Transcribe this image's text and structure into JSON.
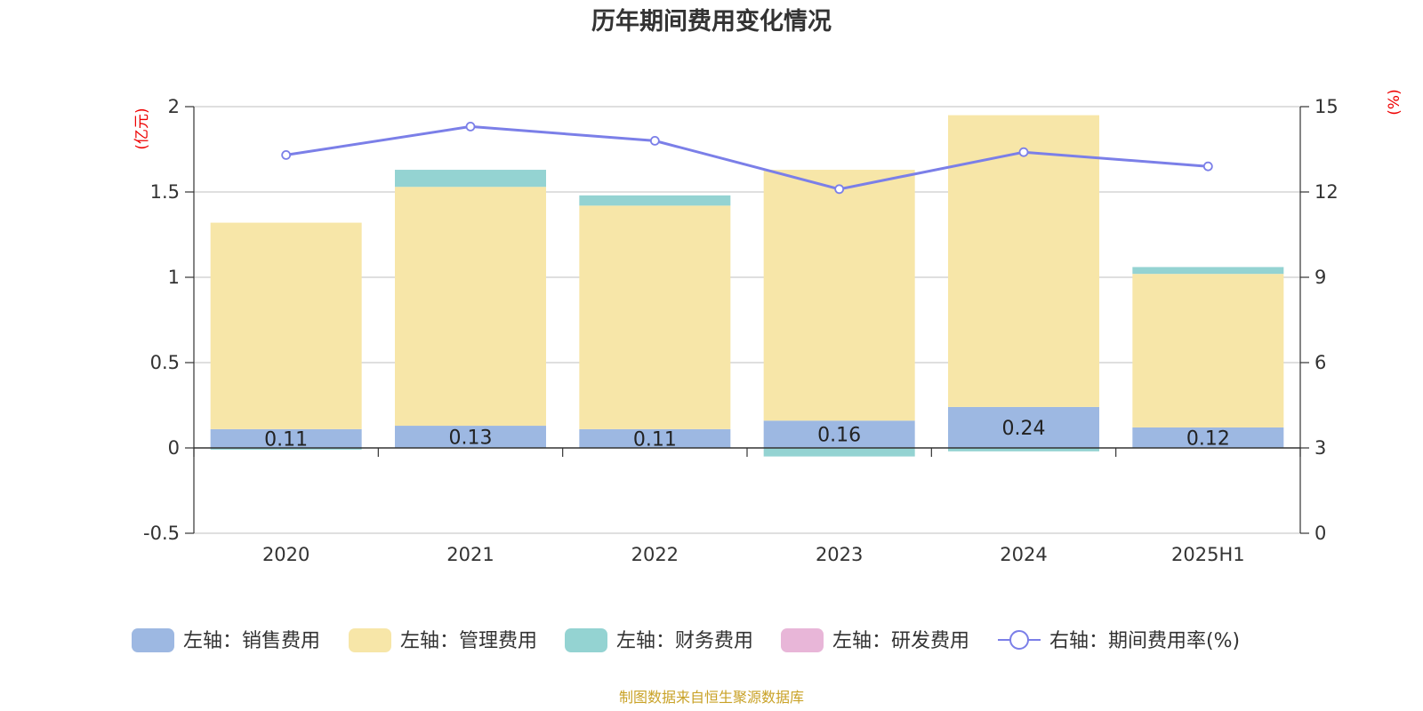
{
  "chart_data": {
    "type": "bar",
    "title": "历年期间费用变化情况",
    "categories": [
      "2020",
      "2021",
      "2022",
      "2023",
      "2024",
      "2025H1"
    ],
    "left_axis": {
      "unit": "(亿元)",
      "ylim": [
        -0.5,
        2
      ],
      "ticks": [
        "-0.5",
        "0",
        "0.5",
        "1",
        "1.5",
        "2"
      ]
    },
    "right_axis": {
      "unit": "(%)",
      "ylim": [
        0,
        15
      ],
      "ticks": [
        "0",
        "3",
        "6",
        "9",
        "12",
        "15"
      ]
    },
    "stacked": true,
    "grid": true,
    "legend_position": "bottom",
    "series": [
      {
        "name": "左轴：销售费用",
        "axis": "left",
        "color": "#9db8e2",
        "values": [
          0.11,
          0.13,
          0.11,
          0.16,
          0.24,
          0.12
        ],
        "labels": [
          "0.11",
          "0.13",
          "0.11",
          "0.16",
          "0.24",
          "0.12"
        ]
      },
      {
        "name": "左轴：管理费用",
        "axis": "left",
        "color": "#f7e6a8",
        "values": [
          1.21,
          1.4,
          1.31,
          1.47,
          1.71,
          0.9
        ]
      },
      {
        "name": "左轴：财务费用",
        "axis": "left",
        "color": "#94d3d2",
        "values": [
          -0.01,
          0.1,
          0.06,
          -0.05,
          -0.02,
          0.04
        ]
      },
      {
        "name": "左轴：研发费用",
        "axis": "left",
        "color": "#e8b6d8",
        "values": [
          0,
          0,
          0,
          0,
          0,
          0
        ]
      },
      {
        "name": "右轴：期间费用率(%)",
        "axis": "right",
        "type": "line",
        "color": "#7b7fe8",
        "values": [
          13.3,
          14.3,
          13.8,
          12.1,
          13.4,
          12.9
        ]
      }
    ]
  },
  "source_note": "制图数据来自恒生聚源数据库"
}
